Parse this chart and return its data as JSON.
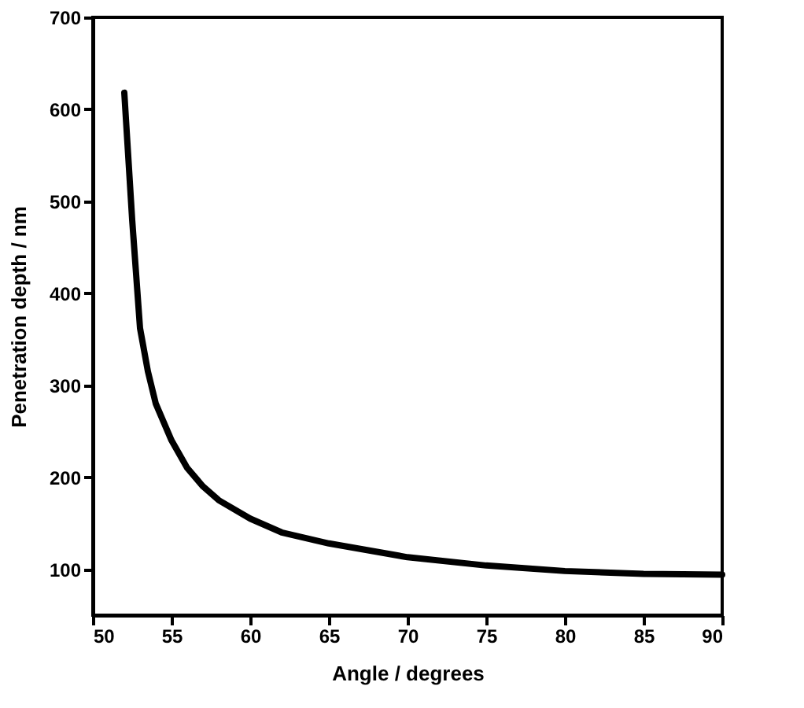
{
  "chart_data": {
    "type": "line",
    "xlabel": "Angle / degrees",
    "ylabel": "Penetration depth / nm",
    "x": [
      52,
      52.5,
      53,
      53.5,
      54,
      55,
      56,
      57,
      58,
      60,
      62,
      65,
      70,
      75,
      80,
      85,
      90
    ],
    "series": [
      {
        "color": "#000000",
        "values": [
          618,
          480,
          362,
          315,
          280,
          240,
          210,
          190,
          175,
          155,
          140,
          128,
          113,
          104,
          98,
          95,
          94
        ]
      }
    ],
    "xlim": [
      50,
      90
    ],
    "xticks": [
      50,
      55,
      60,
      65,
      70,
      75,
      80,
      85,
      90
    ],
    "ylim": [
      50,
      700
    ],
    "yticks": [
      100,
      200,
      300,
      400,
      500,
      600,
      700
    ],
    "grid": false,
    "marker": "none",
    "line_style": "solid"
  }
}
